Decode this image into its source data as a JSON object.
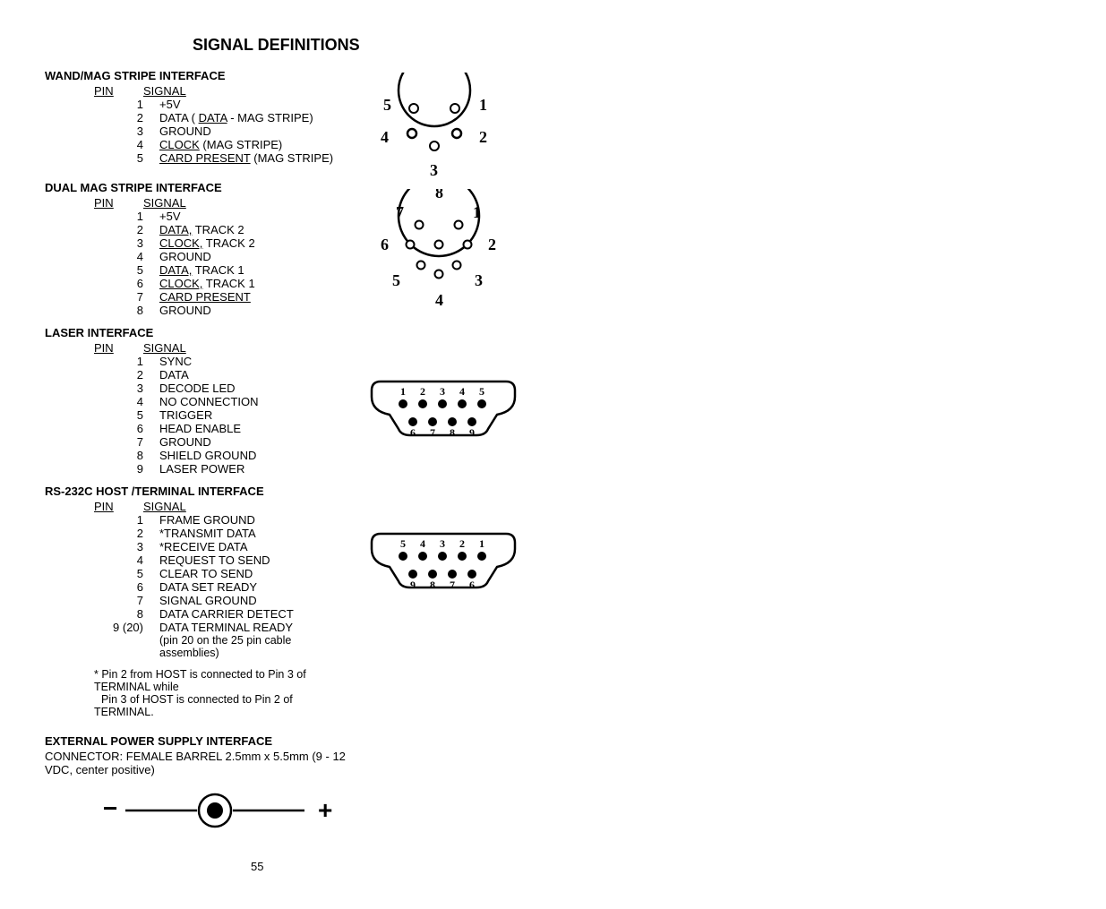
{
  "title": "SIGNAL DEFINITIONS",
  "sections": {
    "wand": {
      "header": "WAND/MAG STRIPE INTERFACE",
      "col_pin": "PIN",
      "col_sig": "SIGNAL",
      "rows": [
        {
          "pin": "1",
          "sig_pre": "",
          "sig_u": "",
          "sig_post": "+5V"
        },
        {
          "pin": "2",
          "sig_pre": "DATA ( ",
          "sig_u": "DATA",
          "sig_post": " - MAG STRIPE)"
        },
        {
          "pin": "3",
          "sig_pre": "",
          "sig_u": "",
          "sig_post": "GROUND"
        },
        {
          "pin": "4",
          "sig_pre": "",
          "sig_u": "CLOCK",
          "sig_post": " (MAG STRIPE)"
        },
        {
          "pin": "5",
          "sig_pre": "",
          "sig_u": "CARD PRESENT",
          "sig_post": " (MAG STRIPE)"
        }
      ]
    },
    "dual": {
      "header": "DUAL MAG STRIPE INTERFACE",
      "col_pin": "PIN",
      "col_sig": "SIGNAL",
      "rows": [
        {
          "pin": "1",
          "sig_pre": "",
          "sig_u": "",
          "sig_post": "+5V"
        },
        {
          "pin": "2",
          "sig_pre": "",
          "sig_u": "DATA,",
          "sig_post": " TRACK 2"
        },
        {
          "pin": "3",
          "sig_pre": "",
          "sig_u": "CLOCK,",
          "sig_post": " TRACK 2"
        },
        {
          "pin": "4",
          "sig_pre": "",
          "sig_u": "",
          "sig_post": "GROUND"
        },
        {
          "pin": "5",
          "sig_pre": "",
          "sig_u": "DATA,",
          "sig_post": " TRACK 1"
        },
        {
          "pin": "6",
          "sig_pre": "",
          "sig_u": "CLOCK,",
          "sig_post": " TRACK 1"
        },
        {
          "pin": "7",
          "sig_pre": "",
          "sig_u": "CARD PRESENT",
          "sig_post": ""
        },
        {
          "pin": "8",
          "sig_pre": "",
          "sig_u": "",
          "sig_post": "GROUND"
        }
      ]
    },
    "laser": {
      "header": "LASER INTERFACE",
      "col_pin": "PIN",
      "col_sig": "SIGNAL",
      "rows": [
        {
          "pin": "1",
          "sig_post": "SYNC"
        },
        {
          "pin": "2",
          "sig_post": "DATA"
        },
        {
          "pin": "3",
          "sig_post": "DECODE LED"
        },
        {
          "pin": "4",
          "sig_post": "NO CONNECTION"
        },
        {
          "pin": "5",
          "sig_post": "TRIGGER"
        },
        {
          "pin": "6",
          "sig_post": "HEAD ENABLE"
        },
        {
          "pin": "7",
          "sig_post": "GROUND"
        },
        {
          "pin": "8",
          "sig_post": "SHIELD GROUND"
        },
        {
          "pin": "9",
          "sig_post": "LASER  POWER"
        }
      ]
    },
    "rs232": {
      "header": "RS-232C HOST /TERMINAL INTERFACE",
      "col_pin": "PIN",
      "col_sig": "SIGNAL",
      "rows": [
        {
          "pin": "1",
          "sig_post": "FRAME GROUND"
        },
        {
          "pin": "2",
          "sig_post": "*TRANSMIT DATA"
        },
        {
          "pin": "3",
          "sig_post": "*RECEIVE DATA"
        },
        {
          "pin": "4",
          "sig_post": "REQUEST TO SEND"
        },
        {
          "pin": "5",
          "sig_post": "CLEAR TO SEND"
        },
        {
          "pin": "6",
          "sig_post": "DATA SET READY"
        },
        {
          "pin": "7",
          "sig_post": "SIGNAL GROUND"
        },
        {
          "pin": "8",
          "sig_post": "DATA CARRIER DETECT"
        },
        {
          "pin": "9 (20)",
          "sig_post": "DATA TERMINAL READY"
        }
      ],
      "note": "(pin 20 on the 25 pin cable assemblies)",
      "footnote1": "* Pin 2 from HOST is connected to Pin 3 of TERMINAL while",
      "footnote2": "Pin 3 of HOST is connected to Pin 2 of TERMINAL."
    },
    "ext": {
      "header": "EXTERNAL POWER SUPPLY INTERFACE",
      "desc": "CONNECTOR: FEMALE BARREL 2.5mm x 5.5mm (9 - 12 VDC,  center positive)",
      "minus": "−",
      "plus": "+"
    }
  },
  "diagrams": {
    "din5": {
      "labels": [
        "1",
        "2",
        "3",
        "4",
        "5"
      ],
      "stroke": "#000000",
      "fill": "#ffffff",
      "label_fontsize": 18,
      "font_family": "Times New Roman, serif",
      "font_weight": "bold"
    },
    "din8": {
      "labels": [
        "1",
        "2",
        "3",
        "4",
        "5",
        "6",
        "7",
        "8"
      ],
      "stroke": "#000000",
      "fill": "#ffffff",
      "label_fontsize": 18,
      "font_family": "Times New Roman, serif",
      "font_weight": "bold"
    },
    "db9_top": {
      "top_labels": [
        "1",
        "2",
        "3",
        "4",
        "5"
      ],
      "bot_labels": [
        "6",
        "7",
        "8",
        "9"
      ],
      "stroke": "#000000",
      "fill": "#000000",
      "label_fontsize": 12,
      "font_family": "Times New Roman, serif",
      "font_weight": "bold"
    },
    "db9_bot": {
      "top_labels": [
        "5",
        "4",
        "3",
        "2",
        "1"
      ],
      "bot_labels": [
        "9",
        "8",
        "7",
        "6"
      ],
      "stroke": "#000000",
      "fill": "#000000",
      "label_fontsize": 12,
      "font_family": "Times New Roman, serif",
      "font_weight": "bold"
    },
    "barrel": {
      "stroke": "#000000",
      "fill": "#000000"
    }
  },
  "page_number": "55"
}
